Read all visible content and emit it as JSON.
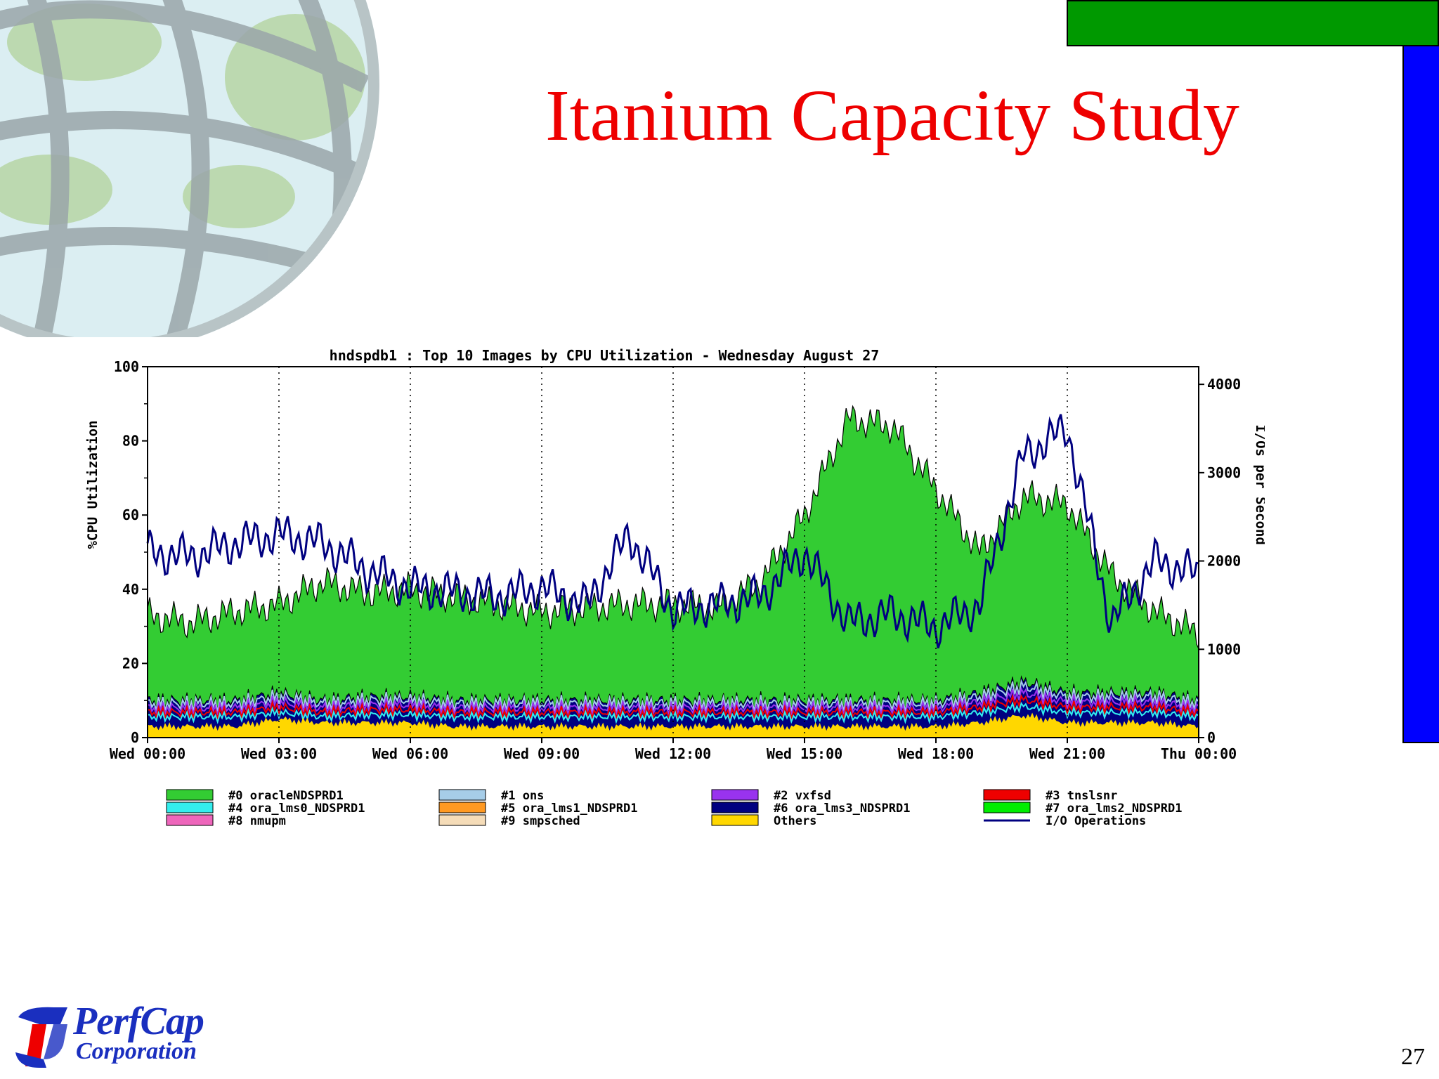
{
  "slide": {
    "title": "Itanium Capacity Study",
    "page_number": "27",
    "logo_line1": "PerfCap",
    "logo_line2": "Corporation",
    "colors": {
      "title": "#ee0000",
      "green_bar": "#009900",
      "blue_bar": "#0000ff"
    }
  },
  "chart_data": {
    "type": "area",
    "title": "hndspdb1 : Top 10 Images by CPU Utilization - Wednesday August 27",
    "ylabel": "%CPU Utilization",
    "y2label": "I/Os per Second",
    "ylim": [
      0,
      100
    ],
    "y2lim": [
      0,
      4200
    ],
    "yticks": [
      "0",
      "20",
      "40",
      "60",
      "80",
      "100"
    ],
    "y2ticks": [
      "0",
      "1000",
      "2000",
      "3000",
      "4000"
    ],
    "xticks": [
      "Wed 00:00",
      "Wed 03:00",
      "Wed 06:00",
      "Wed 09:00",
      "Wed 12:00",
      "Wed 15:00",
      "Wed 18:00",
      "Wed 21:00",
      "Thu 00:00"
    ],
    "x_hours": [
      0,
      1,
      2,
      3,
      4,
      5,
      6,
      7,
      8,
      9,
      10,
      11,
      12,
      13,
      14,
      15,
      16,
      17,
      18,
      19,
      20,
      21,
      22,
      23,
      24
    ],
    "total_cpu": [
      33,
      31,
      34,
      36,
      42,
      39,
      40,
      38,
      36,
      34,
      35,
      36,
      36,
      35,
      42,
      60,
      86,
      84,
      67,
      50,
      65,
      63,
      44,
      34,
      28
    ],
    "others_cpu": [
      3,
      3,
      3,
      5,
      4,
      4,
      4,
      3,
      3,
      3,
      3,
      3,
      3,
      3,
      3,
      3,
      3,
      3,
      3,
      4,
      6,
      4,
      4,
      4,
      3
    ],
    "background_cpu": [
      10,
      10,
      10,
      12,
      10,
      11,
      11,
      10,
      10,
      10,
      10,
      10,
      10,
      10,
      10,
      10,
      10,
      10,
      10,
      12,
      15,
      12,
      12,
      12,
      10
    ],
    "io_ops": [
      2100,
      2050,
      2200,
      2300,
      2200,
      1900,
      1700,
      1650,
      1600,
      1700,
      1500,
      2300,
      1450,
      1500,
      1600,
      2100,
      1300,
      1400,
      1250,
      1500,
      3200,
      3500,
      1300,
      2000,
      1850
    ],
    "series": [
      {
        "name": "#0 oracleNDSPRD1",
        "color": "#33cc33"
      },
      {
        "name": "#1 ons",
        "color": "#a6cde8"
      },
      {
        "name": "#2 vxfsd",
        "color": "#9933ee"
      },
      {
        "name": "#3 tnslsnr",
        "color": "#ee0000"
      },
      {
        "name": "#4 ora_lms0_NDSPRD1",
        "color": "#33eeee"
      },
      {
        "name": "#5 ora_lms1_NDSPRD1",
        "color": "#ff9922"
      },
      {
        "name": "#6 ora_lms3_NDSPRD1",
        "color": "#000080"
      },
      {
        "name": "#7 ora_lms2_NDSPRD1",
        "color": "#00ee00"
      },
      {
        "name": "#8 nmupm",
        "color": "#ee66bb"
      },
      {
        "name": "#9 smpsched",
        "color": "#f5dcb8"
      },
      {
        "name": "Others",
        "color": "#ffd700"
      },
      {
        "name": "I/O Operations",
        "color": "#000080",
        "line": true
      }
    ],
    "legend": "bottom",
    "grid": "vertical dotted"
  }
}
